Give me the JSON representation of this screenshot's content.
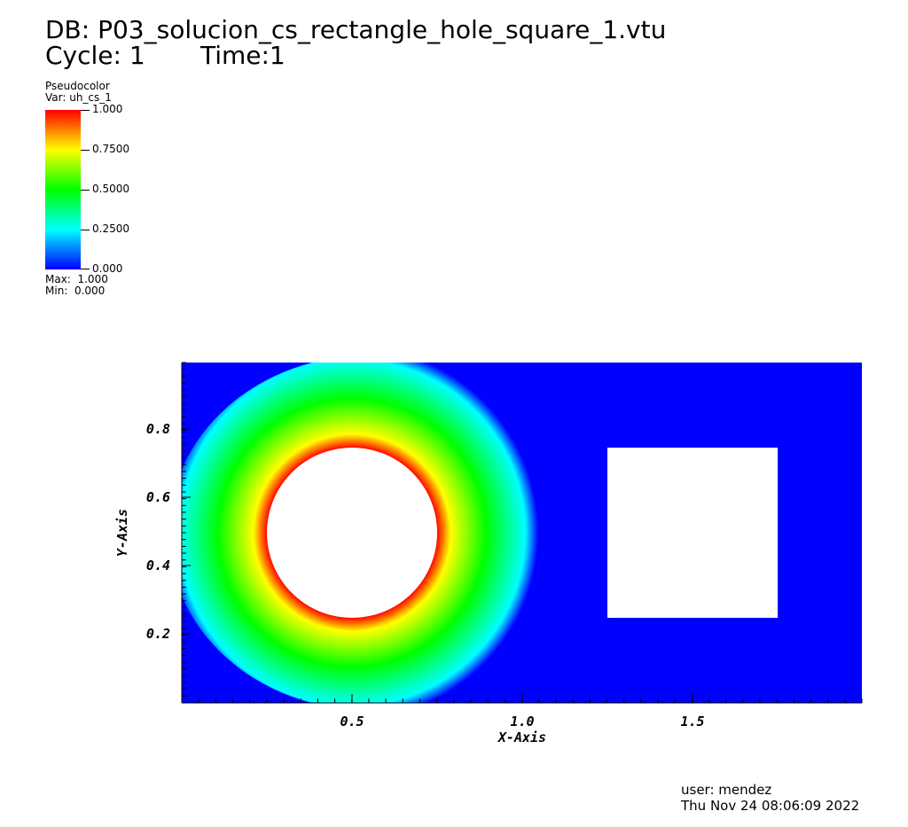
{
  "header": {
    "db_line": "DB: P03_solucion_cs_rectangle_hole_square_1.vtu",
    "cycle_line": "Cycle: 1       Time:1"
  },
  "legend": {
    "title": "Pseudocolor",
    "var": "Var: uh_cs_1",
    "ticks": [
      "1.000",
      "0.7500",
      "0.5000",
      "0.2500",
      "0.000"
    ],
    "max": "Max:  1.000",
    "min": "Min:  0.000",
    "colors": [
      "#0000ff",
      "#00ffff",
      "#00ff00",
      "#ffff00",
      "#ff0000"
    ]
  },
  "footer": {
    "user": "user: mendez",
    "date": "Thu Nov 24 08:06:09 2022"
  },
  "chart_data": {
    "type": "heatmap",
    "variable": "uh_cs_1",
    "xlabel": "X-Axis",
    "ylabel": "Y-Axis",
    "xlim": [
      0,
      2
    ],
    "ylim": [
      0,
      1
    ],
    "x_ticks": [
      "0.5",
      "1.0",
      "1.5"
    ],
    "y_ticks": [
      "0.8",
      "0.6",
      "0.4",
      "0.2"
    ],
    "color_range": [
      0,
      1
    ],
    "holes": [
      {
        "shape": "circle",
        "center": [
          0.5,
          0.5
        ],
        "radius": 0.25
      },
      {
        "shape": "square",
        "x": [
          1.25,
          1.75
        ],
        "y": [
          0.25,
          0.75
        ]
      }
    ]
  }
}
